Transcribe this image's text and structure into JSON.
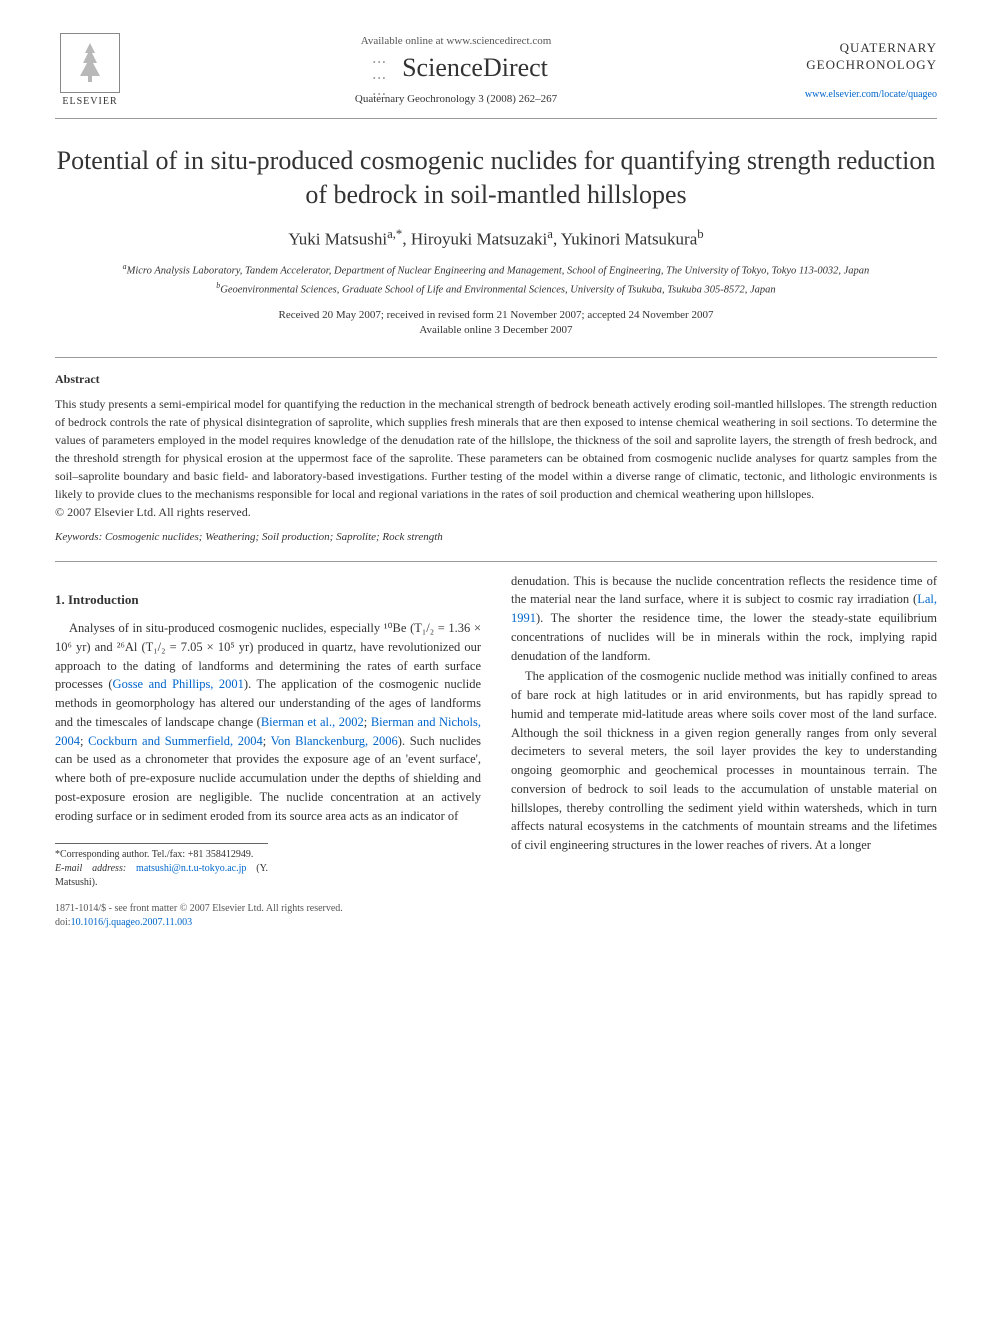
{
  "header": {
    "available_online": "Available online at www.sciencedirect.com",
    "sciencedirect": "ScienceDirect",
    "journal_ref": "Quaternary Geochronology 3 (2008) 262–267",
    "journal_name_line1": "QUATERNARY",
    "journal_name_line2": "GEOCHRONOLOGY",
    "journal_url": "www.elsevier.com/locate/quageo",
    "elsevier": "ELSEVIER"
  },
  "title": "Potential of in situ-produced cosmogenic nuclides for quantifying strength reduction of bedrock in soil-mantled hillslopes",
  "authors_html": "Yuki Matsushi<sup>a,*</sup>, Hiroyuki Matsuzaki<sup>a</sup>, Yukinori Matsukura<sup>b</sup>",
  "affiliations": {
    "a": "Micro Analysis Laboratory, Tandem Accelerator, Department of Nuclear Engineering and Management, School of Engineering, The University of Tokyo, Tokyo 113-0032, Japan",
    "b": "Geoenvironmental Sciences, Graduate School of Life and Environmental Sciences, University of Tsukuba, Tsukuba 305-8572, Japan"
  },
  "dates": {
    "received": "Received 20 May 2007; received in revised form 21 November 2007; accepted 24 November 2007",
    "available": "Available online 3 December 2007"
  },
  "abstract": {
    "heading": "Abstract",
    "text": "This study presents a semi-empirical model for quantifying the reduction in the mechanical strength of bedrock beneath actively eroding soil-mantled hillslopes. The strength reduction of bedrock controls the rate of physical disintegration of saprolite, which supplies fresh minerals that are then exposed to intense chemical weathering in soil sections. To determine the values of parameters employed in the model requires knowledge of the denudation rate of the hillslope, the thickness of the soil and saprolite layers, the strength of fresh bedrock, and the threshold strength for physical erosion at the uppermost face of the saprolite. These parameters can be obtained from cosmogenic nuclide analyses for quartz samples from the soil–saprolite boundary and basic field- and laboratory-based investigations. Further testing of the model within a diverse range of climatic, tectonic, and lithologic environments is likely to provide clues to the mechanisms responsible for local and regional variations in the rates of soil production and chemical weathering upon hillslopes.",
    "copyright": "© 2007 Elsevier Ltd. All rights reserved."
  },
  "keywords": {
    "label": "Keywords:",
    "text": "Cosmogenic nuclides; Weathering; Soil production; Saprolite; Rock strength"
  },
  "section1": {
    "heading": "1. Introduction",
    "col1_p1_pre": "Analyses of in situ-produced cosmogenic nuclides, especially ",
    "col1_p1_nuclides": "¹⁰Be (T₁/₂ = 1.36 × 10⁶ yr) and ²⁶Al (T₁/₂ = 7.05 × 10⁵ yr)",
    "col1_p1_post": " produced in quartz, have revolutionized our approach to the dating of landforms and determining the rates of earth surface processes (",
    "ref1": "Gosse and Phillips, 2001",
    "col1_p1_mid": "). The application of the cosmogenic nuclide methods in geomorphology has altered our understanding of the ages of landforms and the timescales of landscape change (",
    "ref2": "Bierman et al., 2002",
    "ref3": "Bierman and Nichols, 2004",
    "ref4": "Cockburn and Summerfield, 2004",
    "ref5": "Von Blanckenburg, 2006",
    "col1_p1_end": "). Such nuclides can be used as a chronometer that provides the exposure age of an 'event surface', where both of pre-exposure nuclide accumulation under the depths of shielding and post-exposure erosion are negligible. The nuclide concentration at an actively eroding surface or in sediment eroded from its source area acts as an indicator of",
    "col2_p1": "denudation. This is because the nuclide concentration reflects the residence time of the material near the land surface, where it is subject to cosmic ray irradiation (",
    "ref6": "Lal, 1991",
    "col2_p1_end": "). The shorter the residence time, the lower the steady-state equilibrium concentrations of nuclides will be in minerals within the rock, implying rapid denudation of the landform.",
    "col2_p2": "The application of the cosmogenic nuclide method was initially confined to areas of bare rock at high latitudes or in arid environments, but has rapidly spread to humid and temperate mid-latitude areas where soils cover most of the land surface. Although the soil thickness in a given region generally ranges from only several decimeters to several meters, the soil layer provides the key to understanding ongoing geomorphic and geochemical processes in mountainous terrain. The conversion of bedrock to soil leads to the accumulation of unstable material on hillslopes, thereby controlling the sediment yield within watersheds, which in turn affects natural ecosystems in the catchments of mountain streams and the lifetimes of civil engineering structures in the lower reaches of rivers. At a longer"
  },
  "corresponding": {
    "author": "*Corresponding author. Tel./fax: +81 358412949.",
    "email_label": "E-mail address:",
    "email": "matsushi@n.t.u-tokyo.ac.jp",
    "email_name": "(Y. Matsushi)."
  },
  "footer": {
    "line1": "1871-1014/$ - see front matter © 2007 Elsevier Ltd. All rights reserved.",
    "doi_label": "doi:",
    "doi": "10.1016/j.quageo.2007.11.003"
  },
  "colors": {
    "link": "#0066cc",
    "text": "#333333",
    "divider": "#999999"
  }
}
